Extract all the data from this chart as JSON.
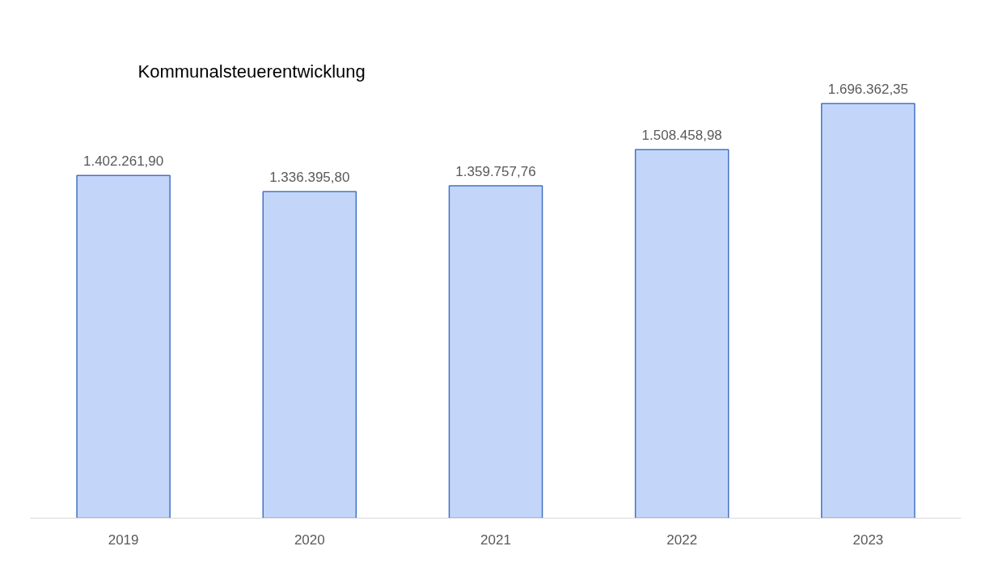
{
  "chart_data": {
    "type": "bar",
    "title": "Kommunalsteuerentwicklung",
    "categories": [
      "2019",
      "2020",
      "2021",
      "2022",
      "2023"
    ],
    "values": [
      1402261.9,
      1336395.8,
      1359757.76,
      1508458.98,
      1696362.35
    ],
    "value_labels": [
      "1.402.261,90",
      "1.336.395,80",
      "1.359.757,76",
      "1.508.458,98",
      "1.696.362,35"
    ],
    "color": "#c3d6fa",
    "grid": false
  }
}
